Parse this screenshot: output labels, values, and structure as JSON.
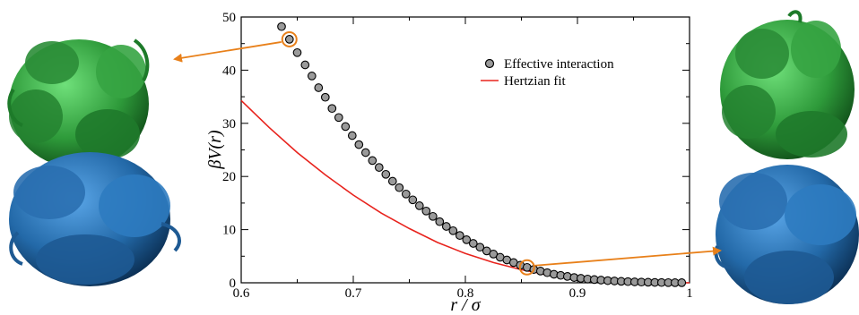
{
  "chart_data": {
    "type": "scatter",
    "xlabel": "r / σ",
    "ylabel": "βV(r)",
    "xlim": [
      0.6,
      1.0
    ],
    "ylim": [
      0,
      50
    ],
    "xticks": [
      0.6,
      0.7,
      0.8,
      0.9,
      1.0
    ],
    "xtick_labels": [
      "0.6",
      "0.7",
      "0.8",
      "0.9",
      "1"
    ],
    "yticks": [
      0,
      10,
      20,
      30,
      40,
      50
    ],
    "ytick_labels": [
      "0",
      "10",
      "20",
      "30",
      "40",
      "50"
    ],
    "legend_position": "top-right",
    "series": [
      {
        "name": "Effective interaction",
        "kind": "scatter",
        "marker": "open-circle",
        "x": [
          0.636,
          0.643,
          0.65,
          0.657,
          0.663,
          0.669,
          0.675,
          0.681,
          0.687,
          0.693,
          0.699,
          0.705,
          0.711,
          0.717,
          0.723,
          0.729,
          0.735,
          0.741,
          0.747,
          0.753,
          0.759,
          0.765,
          0.771,
          0.777,
          0.783,
          0.789,
          0.795,
          0.801,
          0.807,
          0.813,
          0.819,
          0.825,
          0.831,
          0.837,
          0.843,
          0.849,
          0.855,
          0.861,
          0.867,
          0.873,
          0.879,
          0.885,
          0.891,
          0.897,
          0.903,
          0.909,
          0.915,
          0.921,
          0.927,
          0.933,
          0.939,
          0.945,
          0.951,
          0.957,
          0.963,
          0.969,
          0.975,
          0.981,
          0.987,
          0.993
        ],
        "y": [
          48.2,
          45.8,
          43.3,
          41.0,
          38.9,
          36.7,
          34.9,
          32.8,
          31.1,
          29.4,
          27.7,
          26.0,
          24.5,
          23.0,
          21.7,
          20.4,
          19.1,
          17.9,
          16.7,
          15.6,
          14.5,
          13.5,
          12.5,
          11.5,
          10.6,
          9.8,
          8.9,
          8.1,
          7.4,
          6.7,
          6.0,
          5.4,
          4.8,
          4.3,
          3.8,
          3.3,
          2.9,
          2.5,
          2.2,
          1.9,
          1.6,
          1.4,
          1.2,
          1.0,
          0.85,
          0.7,
          0.6,
          0.5,
          0.4,
          0.33,
          0.27,
          0.22,
          0.17,
          0.13,
          0.1,
          0.07,
          0.05,
          0.03,
          0.02,
          0.01
        ]
      },
      {
        "name": "Hertzian fit",
        "kind": "line",
        "x": [
          0.6,
          0.625,
          0.65,
          0.675,
          0.7,
          0.725,
          0.75,
          0.775,
          0.8,
          0.825,
          0.85,
          0.875,
          0.9,
          0.925,
          0.95,
          0.975,
          1.0
        ],
        "y": [
          34.3,
          29.2,
          24.5,
          20.3,
          16.5,
          13.1,
          10.2,
          7.6,
          5.5,
          3.8,
          2.45,
          1.42,
          0.73,
          0.3,
          0.09,
          0.01,
          0.0
        ]
      }
    ],
    "highlights": [
      {
        "x": 0.643,
        "y": 45.8,
        "points_to": "left-structure"
      },
      {
        "x": 0.855,
        "y": 2.9,
        "points_to": "right-structure"
      }
    ]
  },
  "colors": {
    "marker_fill": "#9a9a9a",
    "marker_edge": "#000000",
    "fit_line": "#e8231d",
    "highlight": "#e8801a",
    "arrow": "#e8801a",
    "green_polymer": "#3cab47",
    "blue_polymer": "#2f74b5"
  },
  "images": {
    "left": {
      "semantic": "polymer-pair-overlap-large"
    },
    "right": {
      "semantic": "polymer-pair-overlap-small"
    }
  }
}
